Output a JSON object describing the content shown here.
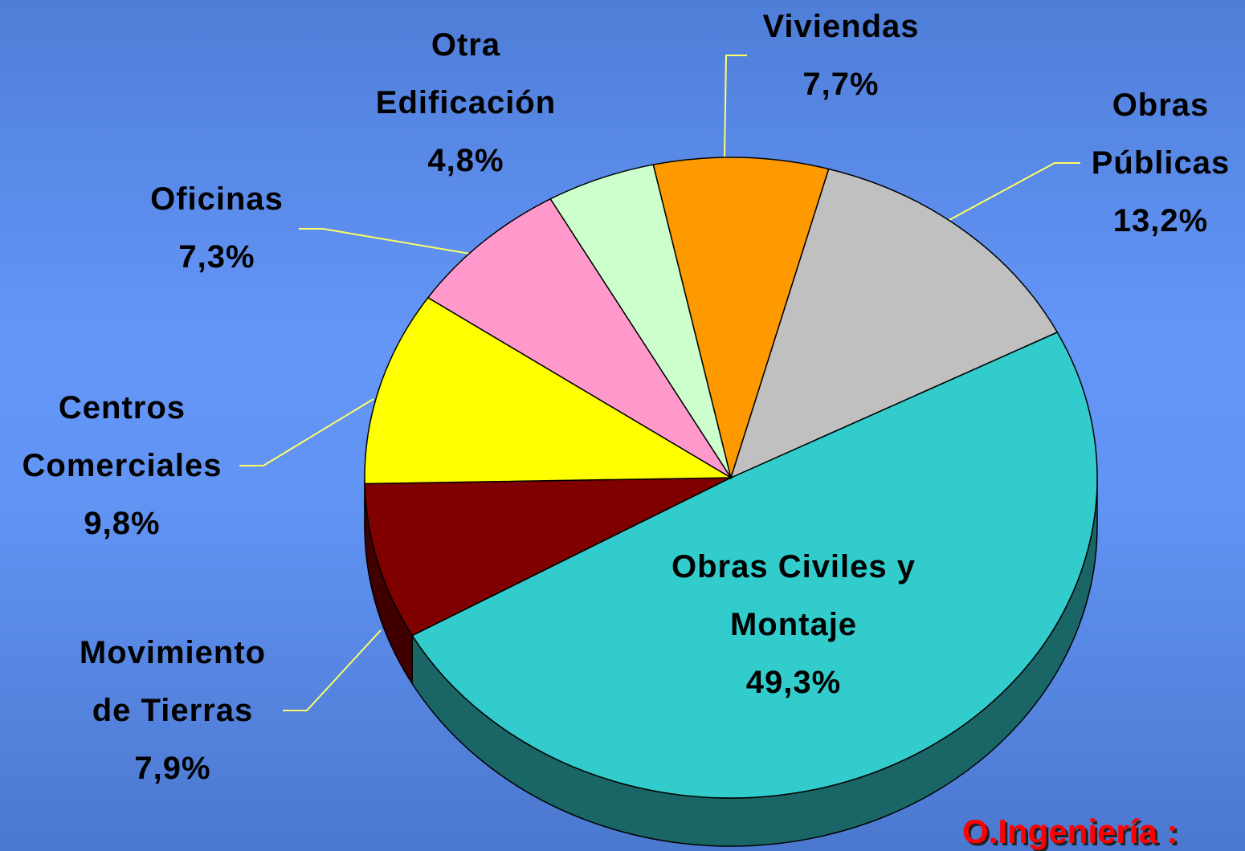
{
  "chart_data": {
    "type": "pie",
    "categories": [
      "Obras Civiles y Montaje",
      "Movimiento de Tierras",
      "Centros Comerciales",
      "Oficinas",
      "Otra Edificación",
      "Viviendas",
      "Obras Públicas"
    ],
    "values": [
      49.3,
      7.9,
      9.8,
      7.3,
      4.8,
      7.7,
      13.2
    ],
    "value_labels": [
      "49,3%",
      "7,9%",
      "9,8%",
      "7,3%",
      "4,8%",
      "7,7%",
      "13,2%"
    ],
    "colors": [
      "#33cccc",
      "#800000",
      "#ffff00",
      "#ff99cc",
      "#ccffcc",
      "#ff9900",
      "#c0c0c0"
    ],
    "annotation": "O.Ingeniería :"
  }
}
